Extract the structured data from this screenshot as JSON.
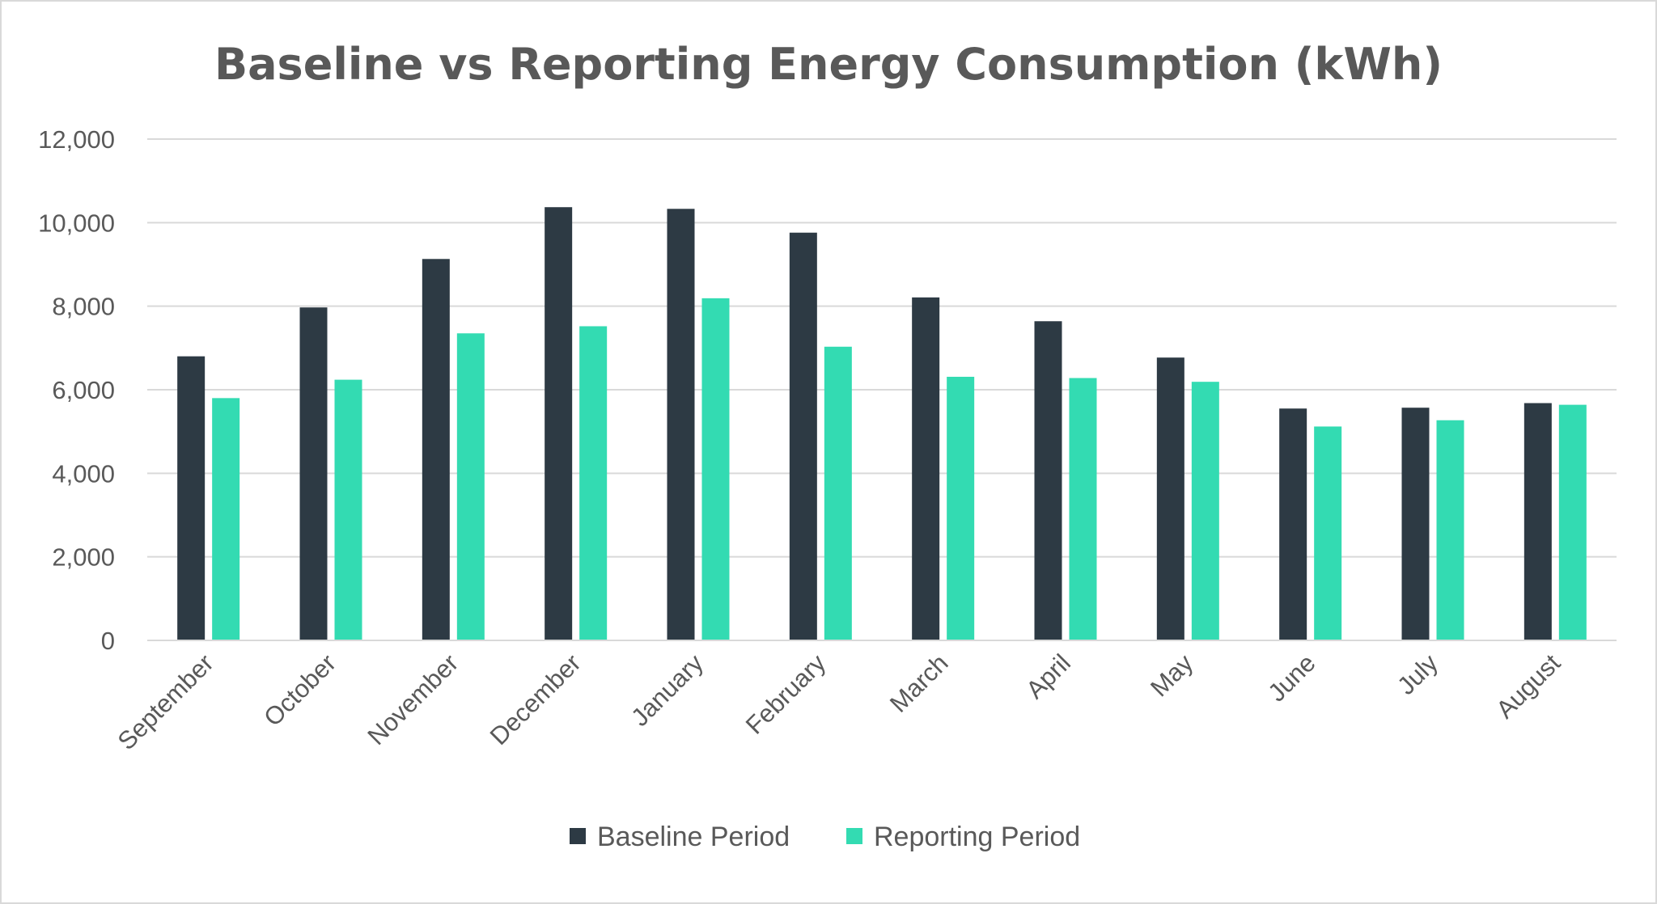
{
  "chart_data": {
    "type": "bar",
    "title": "Baseline vs Reporting Energy Consumption (kWh)",
    "xlabel": "",
    "ylabel": "",
    "ylim": [
      0,
      12000
    ],
    "yticks": [
      0,
      2000,
      4000,
      6000,
      8000,
      10000,
      12000
    ],
    "ytick_labels": [
      "0",
      "2,000",
      "4,000",
      "6,000",
      "8,000",
      "10,000",
      "12,000"
    ],
    "grid": true,
    "legend_position": "bottom",
    "categories": [
      "September",
      "October",
      "November",
      "December",
      "January",
      "February",
      "March",
      "April",
      "May",
      "June",
      "July",
      "August"
    ],
    "series": [
      {
        "name": "Baseline Period",
        "color": "#2d3a44",
        "values": [
          6800,
          7970,
          9130,
          10370,
          10330,
          9760,
          8210,
          7640,
          6770,
          5550,
          5570,
          5680
        ]
      },
      {
        "name": "Reporting Period",
        "color": "#33dbb2",
        "values": [
          5800,
          6240,
          7350,
          7520,
          8190,
          7030,
          6310,
          6280,
          6190,
          5120,
          5270,
          5640
        ]
      }
    ]
  }
}
